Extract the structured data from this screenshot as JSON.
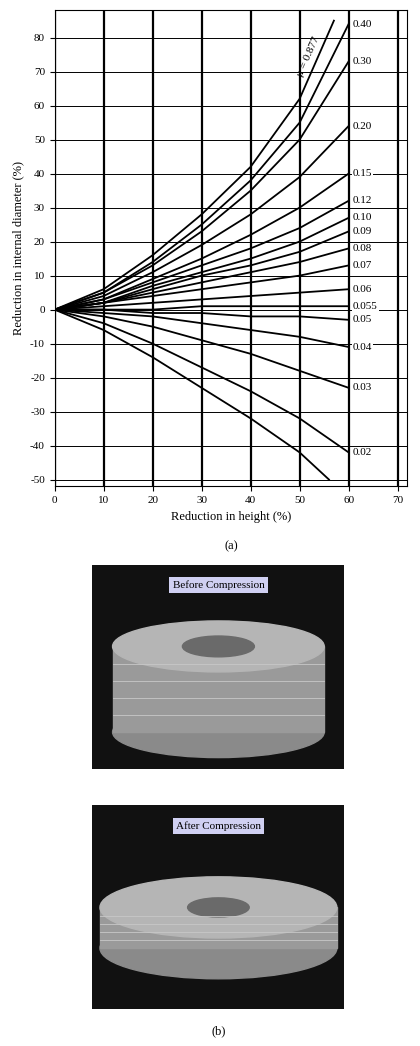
{
  "chart_data": {
    "type": "line",
    "x_label": "Reduction in height (%)",
    "y_label": "Reduction in internal diameter (%)",
    "xlim": [
      0,
      72
    ],
    "xticks": [
      0,
      10,
      20,
      30,
      40,
      50,
      60,
      70
    ],
    "ylim": [
      -52,
      88
    ],
    "yticks": [
      -50,
      -40,
      -30,
      -20,
      -10,
      0,
      10,
      20,
      30,
      40,
      50,
      60,
      70,
      80
    ],
    "grid": true,
    "color": "#000000",
    "series": [
      {
        "name": "μ = 0.877",
        "x": [
          0,
          10,
          20,
          30,
          40,
          50,
          57
        ],
        "values": [
          0,
          6,
          16,
          28,
          42,
          62,
          85
        ]
      },
      {
        "name": "0.40",
        "x": [
          0,
          10,
          20,
          30,
          40,
          50,
          60
        ],
        "values": [
          0,
          5,
          14,
          25,
          38,
          55,
          84
        ]
      },
      {
        "name": "0.30",
        "x": [
          0,
          10,
          20,
          30,
          40,
          50,
          60
        ],
        "values": [
          0,
          5,
          13,
          23,
          35,
          50,
          73
        ]
      },
      {
        "name": "0.20",
        "x": [
          0,
          10,
          20,
          30,
          40,
          50,
          60
        ],
        "values": [
          0,
          4,
          11,
          19,
          28,
          39,
          54
        ]
      },
      {
        "name": "0.15",
        "x": [
          0,
          10,
          20,
          30,
          40,
          50,
          60
        ],
        "values": [
          0,
          3,
          9,
          15,
          22,
          30,
          40
        ]
      },
      {
        "name": "0.12",
        "x": [
          0,
          10,
          20,
          30,
          40,
          50,
          60
        ],
        "values": [
          0,
          3,
          8,
          13,
          18,
          24,
          32
        ]
      },
      {
        "name": "0.10",
        "x": [
          0,
          10,
          20,
          30,
          40,
          50,
          60
        ],
        "values": [
          0,
          2,
          7,
          11,
          15,
          20,
          27
        ]
      },
      {
        "name": "0.09",
        "x": [
          0,
          10,
          20,
          30,
          40,
          50,
          60
        ],
        "values": [
          0,
          2,
          6,
          10,
          13,
          17,
          23
        ]
      },
      {
        "name": "0.08",
        "x": [
          0,
          10,
          20,
          30,
          40,
          50,
          60
        ],
        "values": [
          0,
          2,
          5,
          8,
          11,
          14,
          18
        ]
      },
      {
        "name": "0.07",
        "x": [
          0,
          10,
          20,
          30,
          40,
          50,
          60
        ],
        "values": [
          0,
          2,
          4,
          6,
          8,
          10,
          13
        ]
      },
      {
        "name": "0.06",
        "x": [
          0,
          10,
          20,
          30,
          40,
          50,
          60
        ],
        "values": [
          0,
          1,
          2,
          3,
          4,
          5,
          6
        ]
      },
      {
        "name": "0.055",
        "x": [
          0,
          10,
          20,
          30,
          40,
          50,
          60
        ],
        "values": [
          0,
          0,
          0,
          1,
          1,
          1,
          1
        ]
      },
      {
        "name": "0.05",
        "x": [
          0,
          10,
          20,
          30,
          40,
          50,
          60
        ],
        "values": [
          0,
          0,
          -1,
          -1,
          -2,
          -2,
          -3
        ]
      },
      {
        "name": "0.04",
        "x": [
          0,
          10,
          20,
          30,
          40,
          50,
          60
        ],
        "values": [
          0,
          -1,
          -2,
          -4,
          -6,
          -8,
          -11
        ]
      },
      {
        "name": "0.03",
        "x": [
          0,
          10,
          20,
          30,
          40,
          50,
          60
        ],
        "values": [
          0,
          -2,
          -5,
          -9,
          -13,
          -18,
          -23
        ]
      },
      {
        "name": "0.02",
        "x": [
          0,
          10,
          20,
          30,
          40,
          50,
          60
        ],
        "values": [
          0,
          -4,
          -10,
          -17,
          -24,
          -32,
          -42
        ]
      },
      {
        "x": [
          0,
          10,
          20,
          30,
          40,
          50,
          56
        ],
        "values": [
          0,
          -6,
          -14,
          -23,
          -32,
          -42,
          -50
        ]
      }
    ]
  },
  "chart_caption": "(a)",
  "photos": [
    {
      "label": "Before Compression"
    },
    {
      "label": "After Compression"
    }
  ],
  "photos_caption": "(b)"
}
